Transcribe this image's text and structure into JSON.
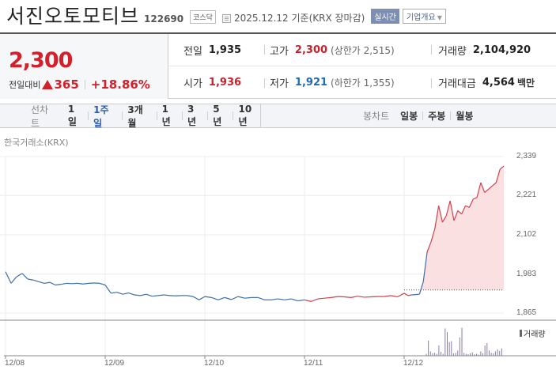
{
  "header": {
    "title": "서진오토모티브",
    "code": "122690",
    "market": "코스닥",
    "date_text": "2025.12.12 기준(KRX 장마감)",
    "realtime_label": "실시간",
    "company_label": "기업개요"
  },
  "price": {
    "current": "2,300",
    "change_label": "전일대비",
    "change": "365",
    "change_pct": "+18.86%",
    "up_color": "#d3202b"
  },
  "stats": {
    "prev_close": {
      "label": "전일",
      "value": "1,935"
    },
    "high": {
      "label": "고가",
      "value": "2,300",
      "sub": "(상한가 2,515)"
    },
    "volume": {
      "label": "거래량",
      "value": "2,104,920"
    },
    "open": {
      "label": "시가",
      "value": "1,936"
    },
    "low": {
      "label": "저가",
      "value": "1,921",
      "sub": "(하한가 1,355)"
    },
    "amount": {
      "label": "거래대금",
      "value": "4,564",
      "unit": "백만"
    }
  },
  "tabs": {
    "line_label": "선차트",
    "line_items": [
      {
        "label": "1일",
        "active": false
      },
      {
        "label": "1주일",
        "active": true
      },
      {
        "label": "3개월",
        "active": false
      },
      {
        "label": "1년",
        "active": false
      },
      {
        "label": "3년",
        "active": false
      },
      {
        "label": "5년",
        "active": false
      },
      {
        "label": "10년",
        "active": false
      }
    ],
    "candle_label": "봉차트",
    "candle_items": [
      {
        "label": "일봉"
      },
      {
        "label": "주봉"
      },
      {
        "label": "월봉"
      }
    ]
  },
  "exchange_label": "한국거래소(KRX)",
  "volume_legend": "거래량",
  "chart_data": {
    "type": "line",
    "title": "서진오토모티브 1주일 선차트",
    "xlabel": "",
    "ylabel": "",
    "x_ticks": [
      "12/08",
      "12/09",
      "12/10",
      "12/11",
      "12/12"
    ],
    "y_ticks": [
      "2,339",
      "2,221",
      "2,102",
      "1,983",
      "1,865"
    ],
    "ylim": [
      1865,
      2339
    ],
    "baseline_prev_close": 1935,
    "series": [
      {
        "name": "price",
        "days": {
          "12/08": [
            1990,
            1955,
            1975,
            1985,
            1968,
            1965,
            1960,
            1955,
            1958,
            1950,
            1952,
            1955,
            1954,
            1955,
            1953,
            1955,
            1956,
            1955
          ],
          "12/09": [
            1950,
            1925,
            1928,
            1922,
            1926,
            1920,
            1918,
            1922,
            1916,
            1918,
            1920,
            1918,
            1917,
            1918,
            1918,
            1915,
            1905
          ],
          "12/10": [
            1915,
            1912,
            1905,
            1912,
            1906,
            1915,
            1910,
            1912,
            1912,
            1905,
            1905,
            1908,
            1905,
            1908,
            1902
          ],
          "12/11": [
            1905,
            1900,
            1908,
            1910,
            1912,
            1915,
            1914,
            1912,
            1916,
            1913,
            1914,
            1915,
            1915,
            1918,
            1914
          ],
          "12/12": [
            1925,
            1918,
            1920,
            1921,
            1922,
            1960,
            2050,
            2080,
            2120,
            2190,
            2140,
            2160,
            2205,
            2145,
            2175,
            2165,
            2190,
            2185,
            2210,
            2215,
            2260,
            2230,
            2240,
            2250,
            2260,
            2300
          ]
        }
      },
      {
        "name": "volume",
        "day_12_12_bars": [
          8,
          62,
          18,
          10,
          12,
          8,
          42,
          16,
          8,
          112,
          97,
          56,
          60,
          10,
          12,
          22,
          75,
          115,
          12,
          8,
          6,
          10,
          14,
          6,
          8,
          5,
          18,
          10,
          42,
          52,
          22,
          12,
          10,
          18,
          26,
          20,
          30
        ]
      }
    ]
  }
}
